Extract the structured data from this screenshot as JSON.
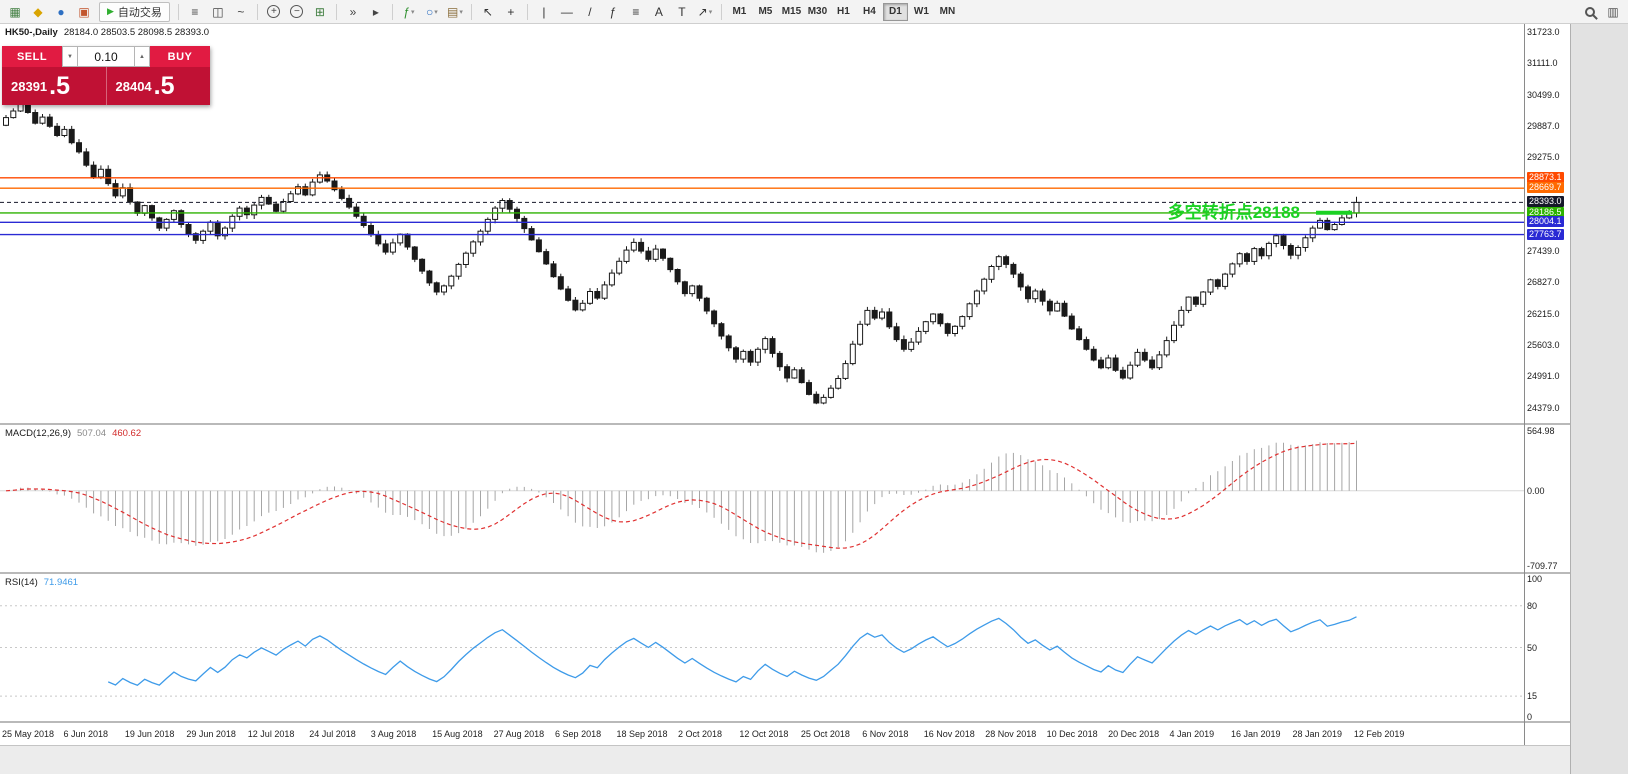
{
  "toolbar": {
    "autotrading_label": "自动交易",
    "autotrading_glyph": "▶",
    "timeframes": [
      "M1",
      "M5",
      "M15",
      "M30",
      "H1",
      "H4",
      "D1",
      "W1",
      "MN"
    ],
    "active_timeframe": "D1",
    "group1": [
      {
        "name": "charts-icon",
        "glyph": "▦",
        "color": "#3f7d3f"
      },
      {
        "name": "new-order-icon",
        "glyph": "◆",
        "color": "#d9a400"
      },
      {
        "name": "market-watch-icon",
        "glyph": "●",
        "color": "#2d6fc2"
      },
      {
        "name": "terminal-icon",
        "glyph": "▣",
        "color": "#c2552d"
      }
    ],
    "groups": [
      [
        {
          "name": "bar-chart-type-icon",
          "glyph": "≡",
          "color": "#444"
        },
        {
          "name": "candlestick-type-icon",
          "glyph": "◫",
          "color": "#444"
        },
        {
          "name": "line-chart-type-icon",
          "glyph": "~",
          "color": "#444"
        }
      ],
      [
        {
          "name": "zoom-in-icon",
          "glyph": "+",
          "color": "#444",
          "circle": true
        },
        {
          "name": "zoom-out-icon",
          "glyph": "−",
          "color": "#444",
          "circle": true
        },
        {
          "name": "tile-windows-icon",
          "glyph": "⊞",
          "color": "#3f7d3f"
        }
      ],
      [
        {
          "name": "auto-scroll-icon",
          "glyph": "»",
          "color": "#444"
        },
        {
          "name": "chart-shift-icon",
          "glyph": "▸",
          "color": "#444"
        }
      ],
      [
        {
          "name": "indicators-icon",
          "glyph": "ƒ",
          "color": "#2d8f2d",
          "caret": true
        },
        {
          "name": "periods-icon",
          "glyph": "○",
          "color": "#2d6fc2",
          "caret": true
        },
        {
          "name": "templates-icon",
          "glyph": "▤",
          "color": "#8a6d3b",
          "caret": true
        }
      ],
      [
        {
          "name": "cursor-icon",
          "glyph": "↖",
          "color": "#333"
        },
        {
          "name": "crosshair-icon",
          "glyph": "+",
          "color": "#333"
        }
      ],
      [
        {
          "name": "vertical-line-icon",
          "glyph": "|",
          "color": "#333"
        },
        {
          "name": "horizontal-line-icon",
          "glyph": "—",
          "color": "#333"
        },
        {
          "name": "trendline-icon",
          "glyph": "/",
          "color": "#333"
        },
        {
          "name": "fibonacci-icon",
          "glyph": "ƒ",
          "color": "#333"
        },
        {
          "name": "channels-icon",
          "glyph": "≡",
          "color": "#333"
        },
        {
          "name": "text-icon",
          "glyph": "A",
          "color": "#333"
        },
        {
          "name": "label-icon",
          "glyph": "T",
          "color": "#333"
        },
        {
          "name": "arrows-icon",
          "glyph": "↗",
          "color": "#333",
          "caret": true
        }
      ]
    ],
    "right_icons": [
      {
        "name": "search-icon",
        "magnifier": true
      },
      {
        "name": "data-window-icon",
        "glyph": "▥",
        "color": "#555"
      }
    ]
  },
  "chart": {
    "symbol_title": "HK50-,Daily",
    "ohlc": "28184.0 28503.5 28098.5 28393.0"
  },
  "trade_panel": {
    "sell_label": "SELL",
    "buy_label": "BUY",
    "volume": "0.10",
    "volume_down_glyph": "▼",
    "volume_up_glyph": "▲",
    "sell_price_main": "28391",
    "sell_price_frac": ".5",
    "buy_price_main": "28404",
    "buy_price_frac": ".5"
  },
  "levels": [
    {
      "price": "28873.1",
      "value": 28873.1,
      "color": "#ff4a00"
    },
    {
      "price": "28669.7",
      "value": 28669.7,
      "color": "#ff6a00"
    },
    {
      "price": "28393.0",
      "value": 28393.0,
      "color": "#16182a",
      "type": "current"
    },
    {
      "price": "28186.5",
      "value": 28186.5,
      "color": "#2db200"
    },
    {
      "price": "28004.1",
      "value": 28004.1,
      "color": "#2a2ad4"
    },
    {
      "price": "27763.7",
      "value": 27763.7,
      "color": "#2a2ad4"
    }
  ],
  "annotation": {
    "text": "多空转折点28188",
    "color": "#1bd123",
    "anchor_price": 28188,
    "segment_x": [
      1316,
      1352
    ]
  },
  "price_axis": {
    "values": [
      31723,
      31111,
      30499,
      29887,
      29275,
      27439,
      26827,
      26215,
      25603,
      24991,
      24379
    ]
  },
  "macd": {
    "name": "MACD(12,26,9)",
    "value_main": "507.04",
    "value_signal": "460.62",
    "params": [
      12,
      26,
      9
    ],
    "axis": [
      {
        "text": "564.98",
        "value": 565
      },
      {
        "text": "0.00",
        "value": 0
      },
      {
        "text": "-709.77",
        "value": -710
      }
    ]
  },
  "rsi": {
    "name": "RSI(14)",
    "value": "71.9461",
    "period": 14,
    "levels": [
      80,
      50,
      15
    ],
    "axis": [
      {
        "text": "100",
        "value": 100
      },
      {
        "text": "80",
        "value": 80
      },
      {
        "text": "50",
        "value": 50
      },
      {
        "text": "15",
        "value": 15
      },
      {
        "text": "0",
        "value": 0
      }
    ]
  },
  "date_axis": {
    "labels": [
      "25 May 2018",
      "6 Jun 2018",
      "19 Jun 2018",
      "29 Jun 2018",
      "12 Jul 2018",
      "24 Jul 2018",
      "3 Aug 2018",
      "15 Aug 2018",
      "27 Aug 2018",
      "6 Sep 2018",
      "18 Sep 2018",
      "2 Oct 2018",
      "12 Oct 2018",
      "25 Oct 2018",
      "6 Nov 2018",
      "16 Nov 2018",
      "28 Nov 2018",
      "10 Dec 2018",
      "20 Dec 2018",
      "4 Jan 2019",
      "16 Jan 2019",
      "28 Jan 2019",
      "12 Feb 2019"
    ]
  },
  "chart_data": {
    "type": "candlestick",
    "symbol": "HK50",
    "timeframe": "Daily",
    "price_range": [
      24379,
      31723
    ],
    "first_open": 29900,
    "last_ohlc": [
      28184.0,
      28503.5,
      28098.5,
      28393.0
    ],
    "closes": [
      30050,
      30180,
      30320,
      30150,
      29940,
      30060,
      29880,
      29700,
      29820,
      29560,
      29380,
      29120,
      28890,
      29040,
      28760,
      28520,
      28680,
      28400,
      28180,
      28330,
      28090,
      27890,
      28060,
      28230,
      27960,
      27780,
      27650,
      27830,
      28010,
      27740,
      27890,
      28120,
      28280,
      28150,
      28340,
      28490,
      28360,
      28220,
      28410,
      28560,
      28700,
      28540,
      28790,
      28930,
      28810,
      28640,
      28470,
      28300,
      28120,
      27940,
      27760,
      27580,
      27420,
      27600,
      27770,
      27520,
      27280,
      27050,
      26820,
      26640,
      26760,
      26950,
      27180,
      27400,
      27620,
      27830,
      28060,
      28280,
      28430,
      28260,
      28080,
      27880,
      27660,
      27430,
      27190,
      26940,
      26700,
      26480,
      26290,
      26420,
      26650,
      26520,
      26780,
      27010,
      27240,
      27460,
      27610,
      27440,
      27280,
      27480,
      27300,
      27080,
      26840,
      26610,
      26760,
      26520,
      26270,
      26020,
      25780,
      25550,
      25330,
      25480,
      25270,
      25520,
      25730,
      25440,
      25180,
      24960,
      25120,
      24870,
      24640,
      24470,
      24580,
      24760,
      24950,
      25240,
      25620,
      26010,
      26280,
      26130,
      26250,
      25960,
      25710,
      25520,
      25660,
      25870,
      26060,
      26210,
      26020,
      25830,
      25970,
      26160,
      26410,
      26660,
      26890,
      27140,
      27330,
      27180,
      26990,
      26740,
      26510,
      26660,
      26460,
      26270,
      26420,
      26170,
      25920,
      25710,
      25520,
      25310,
      25160,
      25350,
      25110,
      24960,
      25210,
      25460,
      25310,
      25160,
      25410,
      25690,
      25990,
      26280,
      26540,
      26400,
      26640,
      26880,
      26750,
      26990,
      27190,
      27390,
      27240,
      27490,
      27350,
      27590,
      27740,
      27550,
      27360,
      27510,
      27700,
      27890,
      28040,
      27860,
      27960,
      28090,
      28184,
      28393
    ]
  }
}
